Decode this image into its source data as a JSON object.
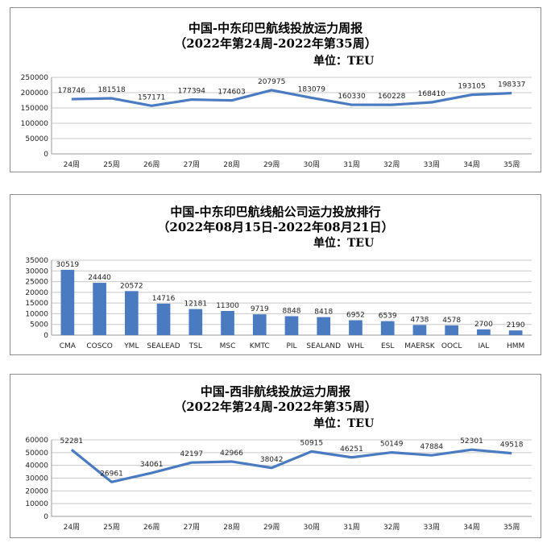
{
  "charts": [
    {
      "title": "中国-中东印巴航线投放运力周报",
      "subtitle": "（2022年第24周-2022年第35周）",
      "unit": "单位：TEU",
      "color": "#4a7bc0"
    },
    {
      "title": "中国-中东印巴航线船公司运力投放排行",
      "subtitle": "（2022年08月15日-2022年08月21日）",
      "unit": "单位：TEU",
      "color": "#4a7bc0"
    },
    {
      "title": "中国-西非航线投放运力周报",
      "subtitle": "（2022年第24周-2022年第35周）",
      "unit": "单位：TEU",
      "color": "#4a7bc0"
    }
  ],
  "chart_data": [
    {
      "type": "line",
      "categories": [
        "24周",
        "25周",
        "26周",
        "27周",
        "28周",
        "29周",
        "30周",
        "31周",
        "32周",
        "33周",
        "34周",
        "35周"
      ],
      "values": [
        178746,
        181518,
        157171,
        177394,
        174603,
        207975,
        183079,
        160330,
        160228,
        168410,
        193105,
        198337
      ],
      "ylim": [
        0,
        250000
      ],
      "yticks": [
        0,
        50000,
        100000,
        150000,
        200000,
        250000
      ],
      "grid": true
    },
    {
      "type": "bar",
      "categories": [
        "CMA",
        "COSCO",
        "YML",
        "SEALEAD",
        "TSL",
        "MSC",
        "KMTC",
        "PIL",
        "SEALAND",
        "WHL",
        "ESL",
        "MAERSK",
        "OOCL",
        "IAL",
        "HMM"
      ],
      "values": [
        30519,
        24440,
        20572,
        14716,
        12181,
        11300,
        9719,
        8848,
        8418,
        6952,
        6539,
        4738,
        4578,
        2700,
        2190
      ],
      "ylim": [
        0,
        35000
      ],
      "yticks": [
        0,
        5000,
        10000,
        15000,
        20000,
        25000,
        30000,
        35000
      ],
      "grid": true
    },
    {
      "type": "line",
      "categories": [
        "24周",
        "25周",
        "26周",
        "27周",
        "28周",
        "29周",
        "30周",
        "31周",
        "32周",
        "33周",
        "34周",
        "35周"
      ],
      "values": [
        52281,
        26961,
        34061,
        42197,
        42966,
        38042,
        50915,
        46251,
        50149,
        47884,
        52301,
        49518
      ],
      "ylim": [
        0,
        60000
      ],
      "yticks": [
        0,
        10000,
        20000,
        30000,
        40000,
        50000,
        60000
      ],
      "grid": true
    }
  ]
}
